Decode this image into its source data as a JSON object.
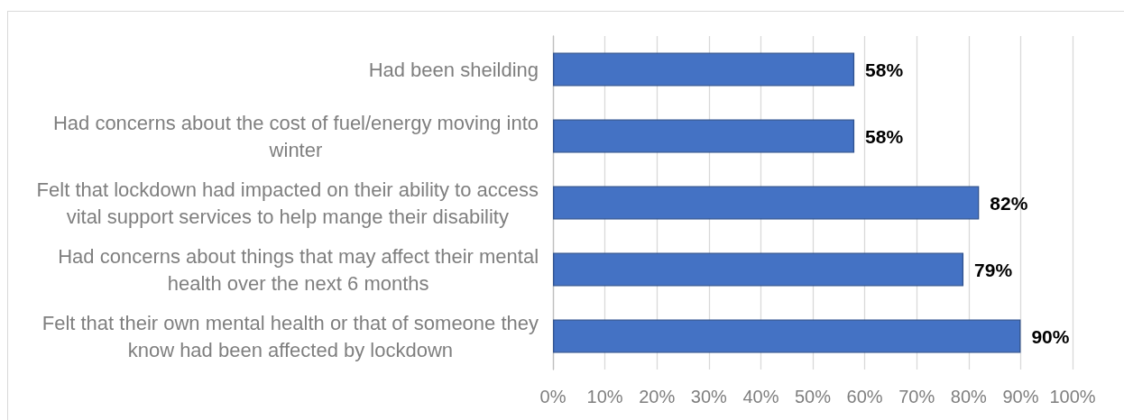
{
  "chart_data": {
    "type": "bar",
    "orientation": "horizontal",
    "categories": [
      "Had been sheilding",
      "Had concerns about the cost of fuel/energy moving into winter",
      "Felt that lockdown had impacted on their ability to access vital support services to help mange their disability",
      "Had concerns about things that may affect their mental health over the next 6 months",
      "Felt that their own mental health or that of someone they know had been affected by lockdown"
    ],
    "values": [
      58,
      58,
      82,
      79,
      90
    ],
    "value_labels": [
      "58%",
      "58%",
      "82%",
      "79%",
      "90%"
    ],
    "color": "#4472c4",
    "xlim": [
      0,
      100
    ],
    "xticks": [
      {
        "value": 0,
        "label": "0%"
      },
      {
        "value": 10,
        "label": "10%"
      },
      {
        "value": 20,
        "label": "20%"
      },
      {
        "value": 30,
        "label": "30%"
      },
      {
        "value": 40,
        "label": "40%"
      },
      {
        "value": 50,
        "label": "50%"
      },
      {
        "value": 60,
        "label": "60%"
      },
      {
        "value": 70,
        "label": "70%"
      },
      {
        "value": 80,
        "label": "80%"
      },
      {
        "value": 90,
        "label": "90%"
      },
      {
        "value": 100,
        "label": "100%"
      }
    ],
    "grid": "x"
  }
}
